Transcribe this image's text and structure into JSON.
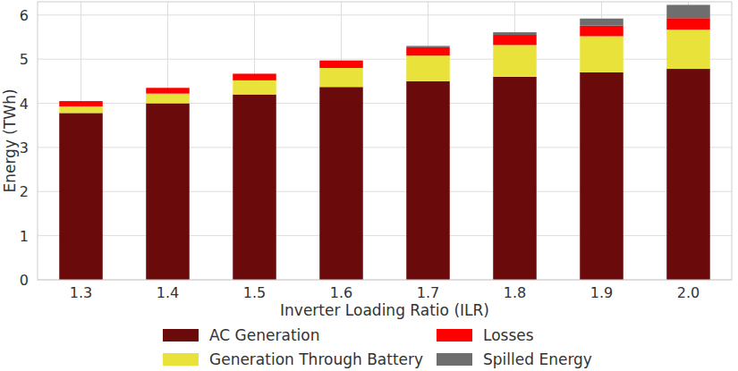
{
  "chart_data": {
    "type": "bar",
    "stacked": true,
    "grid": true,
    "legend": "bottom",
    "x_label": "Inverter Loading Ratio (ILR)",
    "y_label": "Energy (TWh)",
    "categories": [
      "1.3",
      "1.4",
      "1.5",
      "1.6",
      "1.7",
      "1.8",
      "1.9",
      "2.0"
    ],
    "ylim": [
      0,
      6.3
    ],
    "yticks": [
      0,
      1,
      2,
      3,
      4,
      5,
      6
    ],
    "series": [
      {
        "name": "AC Generation",
        "color": "#6b0a0a",
        "values": [
          3.78,
          4.0,
          4.2,
          4.37,
          4.5,
          4.6,
          4.7,
          4.78
        ]
      },
      {
        "name": "Generation Through Battery",
        "color": "#e8e23a",
        "values": [
          0.15,
          0.22,
          0.32,
          0.43,
          0.58,
          0.72,
          0.82,
          0.89
        ]
      },
      {
        "name": "Losses",
        "color": "#ff0000",
        "values": [
          0.12,
          0.13,
          0.15,
          0.17,
          0.19,
          0.23,
          0.24,
          0.26
        ]
      },
      {
        "name": "Spilled Energy",
        "color": "#6e6e6e",
        "values": [
          0,
          0,
          0,
          0,
          0.03,
          0.06,
          0.16,
          0.3
        ]
      }
    ]
  }
}
